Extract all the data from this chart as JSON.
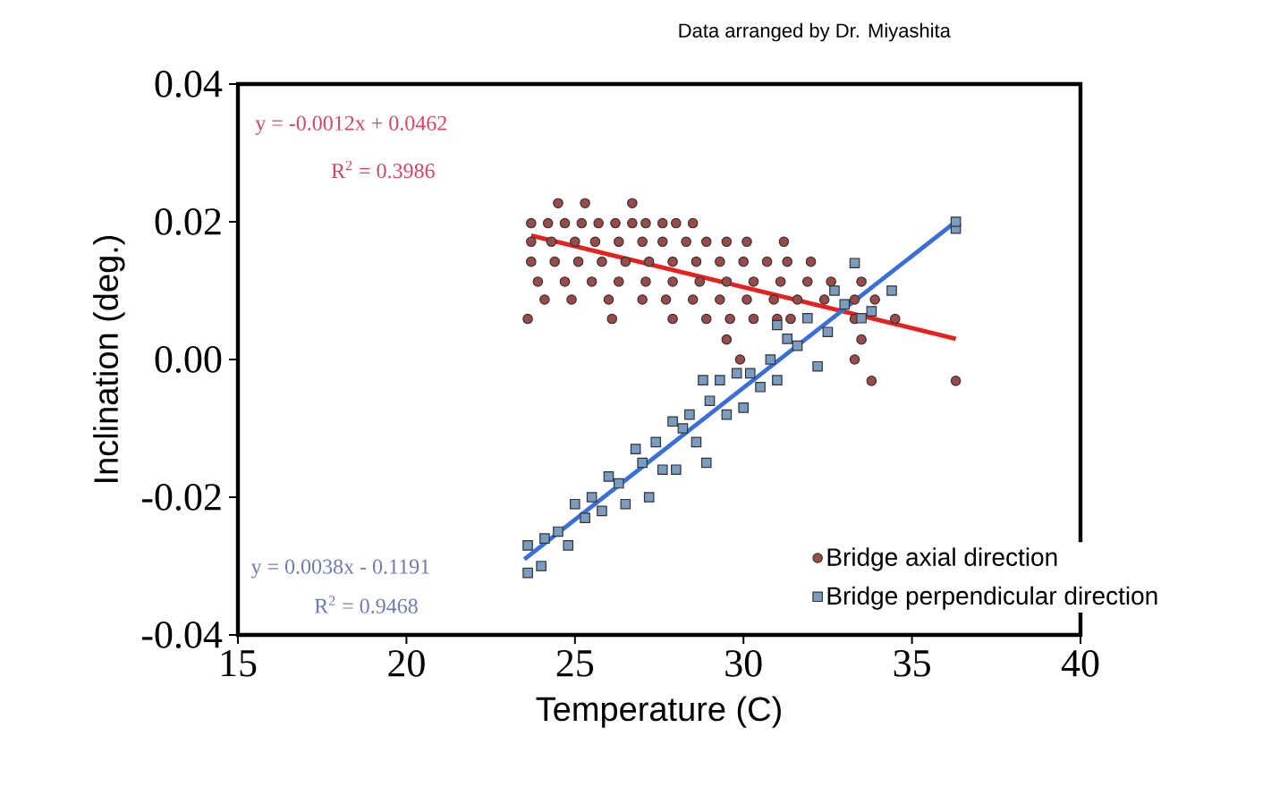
{
  "chart_data": {
    "type": "scatter",
    "xlabel": "Temperature (C)",
    "ylabel": "Inclination (deg.)",
    "annotations": [
      "Data arranged by Dr. Miyashita",
      "y = -0.0012x  + 0.0462",
      "R$^{2}$ = 0.3986",
      "y = 0.0038x  - 0.1191",
      "R$^{2}$ = 0.9468"
    ],
    "xlim": [
      15,
      40
    ],
    "xticks": [
      15,
      20,
      25,
      30,
      35,
      40
    ],
    "ylim": [
      -0.04,
      0.04
    ],
    "yticks": [
      {
        "value": -0.04,
        "label": "-0.04"
      },
      {
        "value": -0.02,
        "label": "-0.02"
      },
      {
        "value": 0,
        "label": "0.00"
      },
      {
        "value": 0.02,
        "label": "0.02"
      },
      {
        "value": 0.04,
        "label": "0.04"
      }
    ],
    "legend": "bottom right",
    "grid": false,
    "series": [
      {
        "name": "Bridge axial direction",
        "marker": "circle",
        "color": "#9b4a4a",
        "x": [
          24.5,
          25.3,
          26.7,
          23.7,
          24.2,
          24.7,
          25.2,
          25.7,
          26.2,
          26.7,
          27.1,
          27.6,
          28.0,
          28.5,
          23.7,
          24.3,
          25.0,
          25.6,
          26.3,
          27.0,
          27.6,
          28.3,
          28.9,
          29.5,
          30.1,
          31.2,
          23.7,
          24.4,
          25.1,
          25.8,
          26.5,
          27.2,
          27.9,
          28.6,
          29.3,
          30.0,
          30.7,
          31.3,
          32.0,
          23.9,
          24.7,
          25.5,
          26.3,
          27.1,
          27.9,
          28.7,
          29.5,
          30.3,
          31.1,
          31.9,
          32.6,
          33.5,
          24.1,
          24.9,
          26.0,
          27.0,
          27.7,
          28.5,
          29.3,
          30.1,
          30.9,
          31.6,
          32.4,
          33.3,
          33.9,
          23.6,
          26.1,
          27.9,
          28.9,
          29.6,
          30.3,
          31.0,
          31.4,
          33.3,
          34.5,
          29.5,
          33.5,
          29.9,
          33.3,
          33.8,
          36.3
        ],
        "values": [
          0.0227,
          0.0227,
          0.0227,
          0.0198,
          0.0198,
          0.0198,
          0.0198,
          0.0198,
          0.0198,
          0.0198,
          0.0198,
          0.0198,
          0.0198,
          0.0198,
          0.0171,
          0.0171,
          0.0171,
          0.0171,
          0.0171,
          0.0171,
          0.0171,
          0.0171,
          0.0171,
          0.0171,
          0.0171,
          0.0171,
          0.0142,
          0.0142,
          0.0142,
          0.0142,
          0.0142,
          0.0142,
          0.0142,
          0.0142,
          0.0142,
          0.0142,
          0.0142,
          0.0142,
          0.0142,
          0.0113,
          0.0113,
          0.0113,
          0.0113,
          0.0113,
          0.0113,
          0.0113,
          0.0113,
          0.0113,
          0.0113,
          0.0113,
          0.0113,
          0.0113,
          0.0087,
          0.0087,
          0.0087,
          0.0087,
          0.0087,
          0.0087,
          0.0087,
          0.0087,
          0.0087,
          0.0087,
          0.0087,
          0.0087,
          0.0087,
          0.0059,
          0.0059,
          0.0059,
          0.0059,
          0.0059,
          0.0059,
          0.0059,
          0.0059,
          0.0059,
          0.0059,
          0.0029,
          0.0029,
          0.0,
          0.0,
          -0.0031,
          -0.0031
        ]
      },
      {
        "name": "Bridge perpendicular direction",
        "marker": "square",
        "color": "#7a9cc0",
        "x": [
          23.6,
          23.6,
          24.0,
          24.1,
          24.5,
          24.8,
          25.0,
          25.3,
          25.5,
          25.8,
          26.0,
          26.3,
          26.5,
          26.8,
          27.0,
          27.2,
          27.4,
          27.6,
          27.9,
          28.0,
          28.2,
          28.4,
          28.6,
          28.8,
          28.9,
          29.0,
          29.3,
          29.5,
          29.8,
          30.0,
          30.2,
          30.5,
          30.8,
          31.0,
          31.0,
          31.3,
          31.6,
          31.9,
          32.2,
          32.5,
          32.7,
          33.0,
          33.3,
          33.5,
          33.8,
          34.4,
          36.3,
          36.3
        ],
        "values": [
          -0.031,
          -0.027,
          -0.03,
          -0.026,
          -0.025,
          -0.027,
          -0.021,
          -0.023,
          -0.02,
          -0.022,
          -0.017,
          -0.018,
          -0.021,
          -0.013,
          -0.015,
          -0.02,
          -0.012,
          -0.016,
          -0.009,
          -0.016,
          -0.01,
          -0.008,
          -0.012,
          -0.003,
          -0.015,
          -0.006,
          -0.003,
          -0.008,
          -0.002,
          -0.007,
          -0.002,
          -0.004,
          0.0,
          -0.003,
          0.005,
          0.003,
          0.002,
          0.006,
          -0.001,
          0.004,
          0.01,
          0.008,
          0.014,
          0.006,
          0.007,
          0.01,
          0.019,
          0.02
        ]
      },
      {
        "type": "line",
        "marker": "none",
        "color": "#e8201e",
        "x": [
          23.7,
          36.3
        ],
        "values": [
          0.018,
          0.003
        ]
      },
      {
        "type": "line",
        "marker": "none",
        "color": "#3a6fd8",
        "x": [
          23.5,
          36.3
        ],
        "values": [
          -0.029,
          0.02
        ]
      }
    ]
  }
}
